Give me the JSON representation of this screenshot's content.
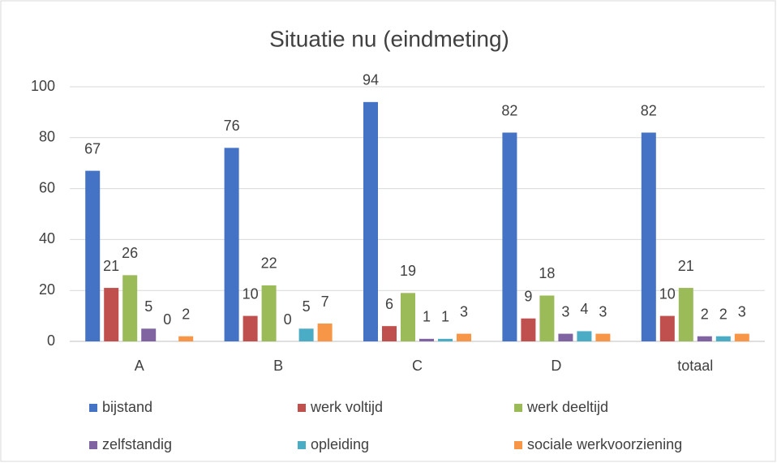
{
  "chart_data": {
    "type": "bar",
    "title": "Situatie nu (eindmeting)",
    "categories": [
      "A",
      "B",
      "C",
      "D",
      "totaal"
    ],
    "series": [
      {
        "name": "bijstand",
        "color": "#4472c4",
        "values": [
          67,
          76,
          94,
          82,
          82
        ]
      },
      {
        "name": "werk voltijd",
        "color": "#c0504d",
        "values": [
          21,
          10,
          6,
          9,
          10
        ]
      },
      {
        "name": "werk deeltijd",
        "color": "#9bbb59",
        "values": [
          26,
          22,
          19,
          18,
          21
        ]
      },
      {
        "name": "zelfstandig",
        "color": "#8064a2",
        "values": [
          5,
          0,
          1,
          3,
          2
        ]
      },
      {
        "name": "opleiding",
        "color": "#4bacc6",
        "values": [
          0,
          5,
          1,
          4,
          2
        ]
      },
      {
        "name": "sociale werkvoorziening",
        "color": "#f79646",
        "values": [
          2,
          7,
          3,
          3,
          3
        ]
      }
    ],
    "ylim": [
      0,
      100
    ],
    "yticks": [
      0,
      20,
      40,
      60,
      80,
      100
    ],
    "grid": true,
    "legend": "bottom"
  }
}
